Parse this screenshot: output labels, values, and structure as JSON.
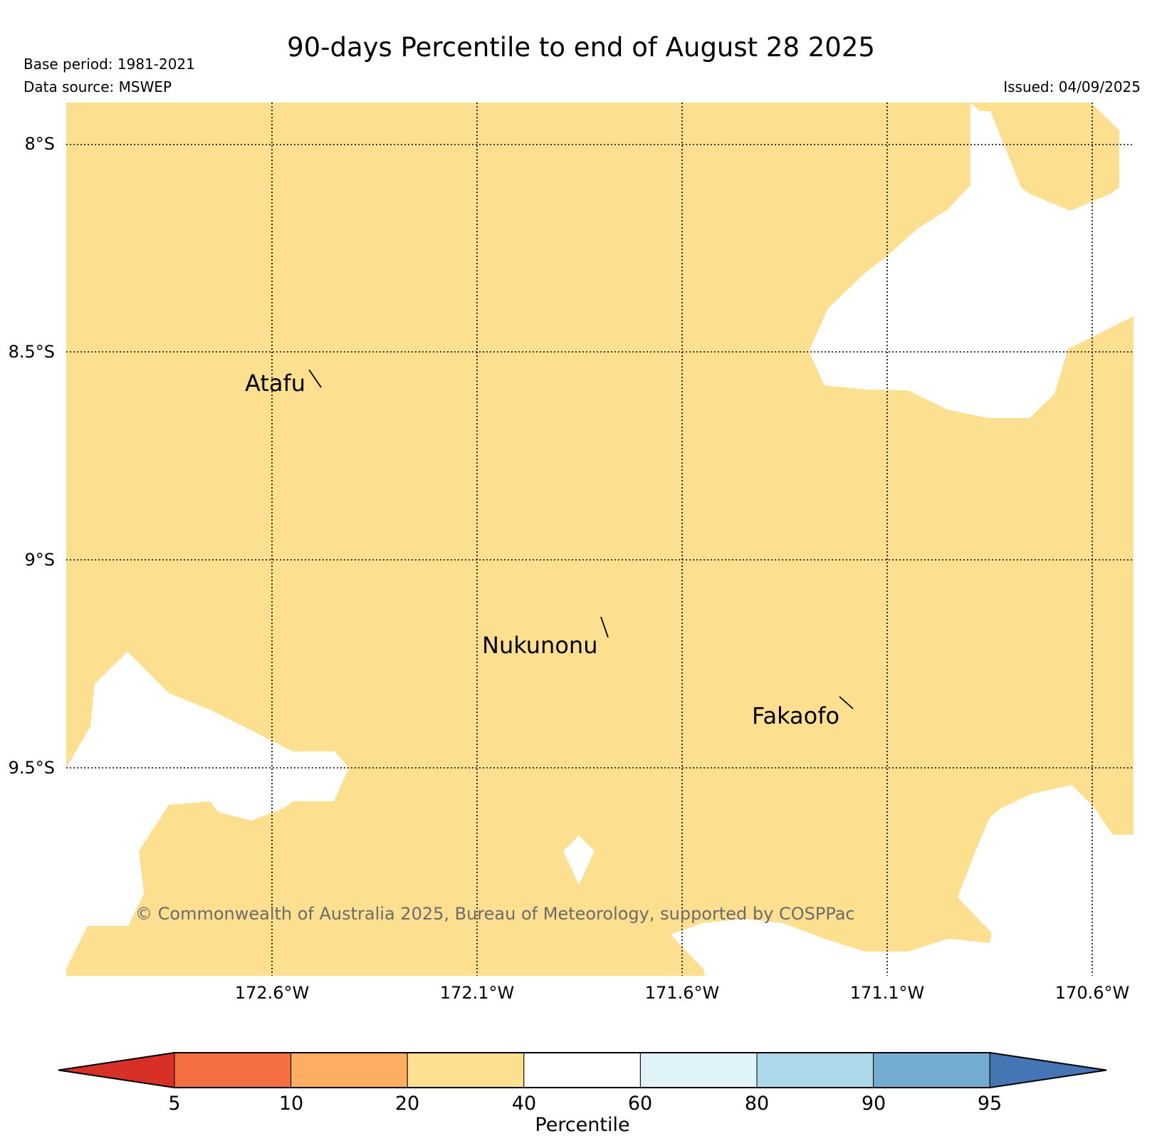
{
  "header": {
    "title": "90-days Percentile to end of August 28 2025",
    "base_period": "Base period: 1981-2021",
    "data_source": "Data source: MSWEP",
    "issued": "Issued: 04/09/2025"
  },
  "axes": {
    "lat_labels": [
      "8°S",
      "8.5°S",
      "9°S",
      "9.5°S"
    ],
    "lon_labels": [
      "172.6°W",
      "172.1°W",
      "171.6°W",
      "171.1°W",
      "170.6°W"
    ]
  },
  "places": {
    "atafu": "Atafu",
    "nukunonu": "Nukunonu",
    "fakaofo": "Fakaofo"
  },
  "copyright": "© Commonwealth of Australia 2025, Bureau of Meteorology, supported by COSPPac",
  "colorbar": {
    "label": "Percentile",
    "ticks": [
      "5",
      "10",
      "20",
      "40",
      "60",
      "80",
      "90",
      "95"
    ],
    "bins": [
      {
        "range": "<5",
        "color": "#d73027"
      },
      {
        "range": "5-10",
        "color": "#f46d43"
      },
      {
        "range": "10-20",
        "color": "#fdae61"
      },
      {
        "range": "20-40",
        "color": "#fee090"
      },
      {
        "range": "40-60",
        "color": "#ffffff"
      },
      {
        "range": "60-80",
        "color": "#e0f3f8"
      },
      {
        "range": "80-90",
        "color": "#abd9e9"
      },
      {
        "range": "90-95",
        "color": "#74add1"
      },
      {
        "range": ">95",
        "color": "#4575b4"
      }
    ]
  },
  "map": {
    "fill_category": "20-40",
    "fill_color": "#fde08f",
    "gap_category": "40-60",
    "gap_color": "#ffffff"
  }
}
